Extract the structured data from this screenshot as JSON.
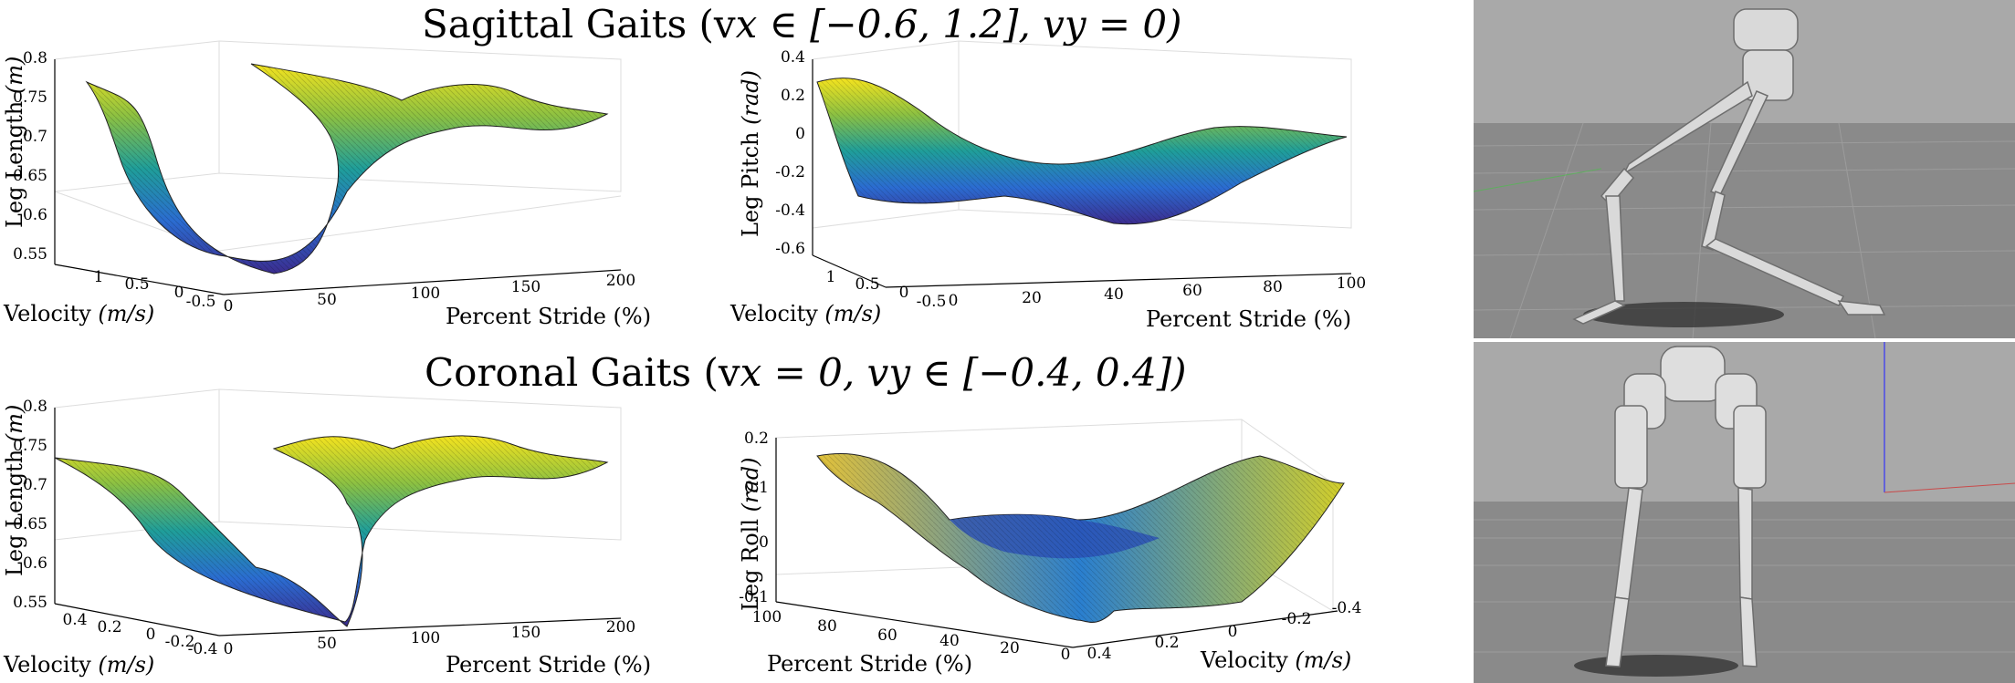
{
  "figure": {
    "title_sagittal": "Sagittal Gaits (v",
    "title_sagittal_math": "x ∈ [−0.6, 1.2], v",
    "title_sagittal_math2": "y = 0)",
    "title_coronal": "Coronal Gaits (v",
    "title_coronal_math": "x = 0, v",
    "title_coronal_math2": "y ∈ [−0.4, 0.4])"
  },
  "plots": {
    "sag_length": {
      "zlabel": "Leg Length ",
      "zunit": "(m)",
      "xlabel": "Velocity ",
      "xunit": "(m/s)",
      "ylabel": "Percent Stride (%)",
      "zticks": [
        "0.8",
        "0.75",
        "0.7",
        "0.65",
        "0.6",
        "0.55"
      ],
      "vticks": [
        "1",
        "0.5",
        "0",
        "-0.5"
      ],
      "sticks": [
        "0",
        "50",
        "100",
        "150",
        "200"
      ]
    },
    "sag_pitch": {
      "zlabel": "Leg Pitch ",
      "zunit": "(rad)",
      "xlabel": "Velocity ",
      "xunit": "(m/s)",
      "ylabel": "Percent Stride (%)",
      "zticks": [
        "0.4",
        "0.2",
        "0",
        "-0.2",
        "-0.4",
        "-0.6"
      ],
      "vticks": [
        "1",
        "0.5",
        "0",
        "-0.5"
      ],
      "sticks": [
        "0",
        "20",
        "40",
        "60",
        "80",
        "100"
      ]
    },
    "cor_length": {
      "zlabel": "Leg Length ",
      "zunit": "(m)",
      "xlabel": "Velocity ",
      "xunit": "(m/s)",
      "ylabel": "Percent Stride (%)",
      "zticks": [
        "0.8",
        "0.75",
        "0.7",
        "0.65",
        "0.6",
        "0.55"
      ],
      "vticks": [
        "0.4",
        "0.2",
        "0",
        "-0.2",
        "-0.4"
      ],
      "sticks": [
        "0",
        "50",
        "100",
        "150",
        "200"
      ]
    },
    "cor_roll": {
      "zlabel": "Leg Roll ",
      "zunit": "(rad)",
      "xlabel": "Velocity ",
      "xunit": "(m/s)",
      "ylabel": "Percent Stride (%)",
      "zticks": [
        "0.2",
        "0.1",
        "0",
        "-0.1"
      ],
      "sticks": [
        "100",
        "80",
        "60",
        "40",
        "20",
        "0"
      ],
      "vticks": [
        "0.4",
        "0.2",
        "0",
        "-0.2",
        "-0.4"
      ]
    }
  },
  "colors": {
    "surface_low": "#3b2c8f",
    "surface_mid": "#1f9e9a",
    "surface_high": "#f4e31e",
    "sim_floor": "#8a8a8a",
    "sim_sky": "#a9a9a9"
  },
  "chart_data": [
    {
      "type": "surface",
      "name_ref": "sag_length",
      "x": "Percent Stride (%)",
      "xlim": [
        0,
        200
      ],
      "y": "Velocity (m/s)",
      "ylim": [
        -0.6,
        1.2
      ],
      "z": "Leg Length (m)",
      "zlim": [
        0.55,
        0.8
      ],
      "profile_x": [
        0,
        20,
        40,
        60,
        80,
        100,
        120,
        140,
        160,
        180,
        200
      ],
      "profile_z_at_v_max": [
        0.77,
        0.72,
        0.64,
        0.59,
        0.56,
        0.61,
        0.75,
        0.78,
        0.76,
        0.75,
        0.74
      ]
    },
    {
      "type": "surface",
      "name_ref": "sag_pitch",
      "x": "Percent Stride (%)",
      "xlim": [
        0,
        100
      ],
      "y": "Velocity (m/s)",
      "ylim": [
        -0.6,
        1.2
      ],
      "z": "Leg Pitch (rad)",
      "zlim": [
        -0.6,
        0.4
      ],
      "profile_x": [
        0,
        20,
        40,
        60,
        80,
        100
      ],
      "profile_z_at_v_max": [
        0.3,
        0.1,
        -0.2,
        -0.35,
        -0.15,
        0.0
      ]
    },
    {
      "type": "surface",
      "name_ref": "cor_length",
      "x": "Percent Stride (%)",
      "xlim": [
        0,
        200
      ],
      "y": "Velocity (m/s)",
      "ylim": [
        -0.4,
        0.4
      ],
      "z": "Leg Length (m)",
      "zlim": [
        0.55,
        0.8
      ],
      "profile_x": [
        0,
        20,
        40,
        60,
        80,
        100,
        120,
        140,
        160,
        180,
        200
      ],
      "profile_z_at_v_max": [
        0.74,
        0.73,
        0.66,
        0.58,
        0.56,
        0.62,
        0.76,
        0.77,
        0.75,
        0.74,
        0.73
      ]
    },
    {
      "type": "surface",
      "name_ref": "cor_roll",
      "x": "Percent Stride (%)",
      "xlim": [
        0,
        100
      ],
      "y": "Velocity (m/s)",
      "ylim": [
        -0.4,
        0.4
      ],
      "z": "Leg Roll (rad)",
      "zlim": [
        -0.1,
        0.2
      ],
      "profile_x": [
        0,
        20,
        40,
        60,
        80,
        100
      ],
      "profile_z_at_v_max": [
        0.15,
        0.05,
        -0.05,
        -0.08,
        0.02,
        0.12
      ]
    }
  ]
}
